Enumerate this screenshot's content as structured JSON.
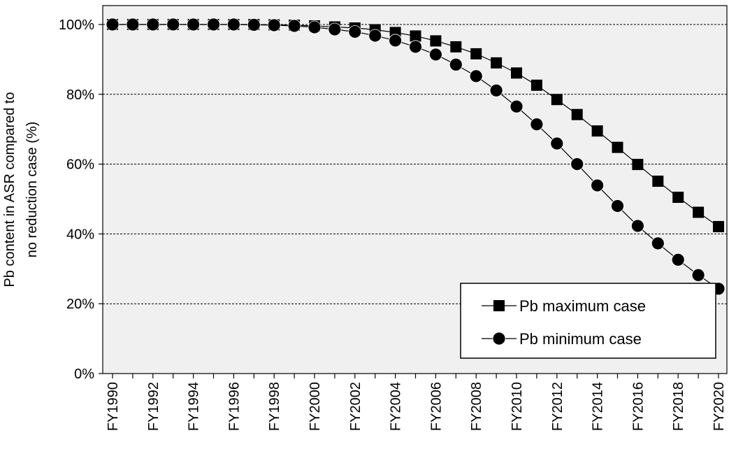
{
  "chart_data": {
    "type": "line",
    "title": "",
    "xlabel": "",
    "ylabel": "Pb content in ASR compared to no reduction case (%)",
    "ylabel_lines": [
      "Pb content in ASR compared to",
      "no reduction case (%)"
    ],
    "ylim": [
      0,
      100
    ],
    "y_ticks": [
      "0%",
      "20%",
      "40%",
      "60%",
      "80%",
      "100%"
    ],
    "y_tick_values": [
      0,
      20,
      40,
      60,
      80,
      100
    ],
    "grid": "horizontal dashed",
    "plot_background": "#f0f0f0",
    "legend_position": "lower-right",
    "categories": [
      "FY1990",
      "FY1991",
      "FY1992",
      "FY1993",
      "FY1994",
      "FY1995",
      "FY1996",
      "FY1997",
      "FY1998",
      "FY1999",
      "FY2000",
      "FY2001",
      "FY2002",
      "FY2003",
      "FY2004",
      "FY2005",
      "FY2006",
      "FY2007",
      "FY2008",
      "FY2009",
      "FY2010",
      "FY2011",
      "FY2012",
      "FY2013",
      "FY2014",
      "FY2015",
      "FY2016",
      "FY2017",
      "FY2018",
      "FY2019",
      "FY2020"
    ],
    "x_tick_labels": [
      "FY1990",
      "FY1992",
      "FY1994",
      "FY1996",
      "FY1998",
      "FY2000",
      "FY2002",
      "FY2004",
      "FY2006",
      "FY2008",
      "FY2010",
      "FY2012",
      "FY2014",
      "FY2016",
      "FY2018",
      "FY2020"
    ],
    "series": [
      {
        "name": "Pb maximum case",
        "marker": "square",
        "color": "#000000",
        "values": [
          100,
          100,
          100,
          100,
          100,
          100,
          100,
          100,
          99.9,
          99.8,
          99.6,
          99.3,
          99.0,
          98.5,
          97.7,
          96.7,
          95.3,
          93.6,
          91.6,
          89.0,
          86.1,
          82.6,
          78.5,
          74.2,
          69.5,
          64.8,
          59.9,
          55.1,
          50.5,
          46.2,
          42.1
        ]
      },
      {
        "name": "Pb minimum case",
        "marker": "circle",
        "color": "#000000",
        "values": [
          100,
          100,
          100,
          100,
          100,
          100,
          100,
          99.9,
          99.8,
          99.6,
          99.2,
          98.6,
          97.9,
          96.8,
          95.4,
          93.6,
          91.4,
          88.5,
          85.2,
          81.1,
          76.5,
          71.4,
          65.9,
          60.0,
          53.9,
          48.0,
          42.3,
          37.3,
          32.6,
          28.2,
          24.3
        ]
      }
    ]
  }
}
